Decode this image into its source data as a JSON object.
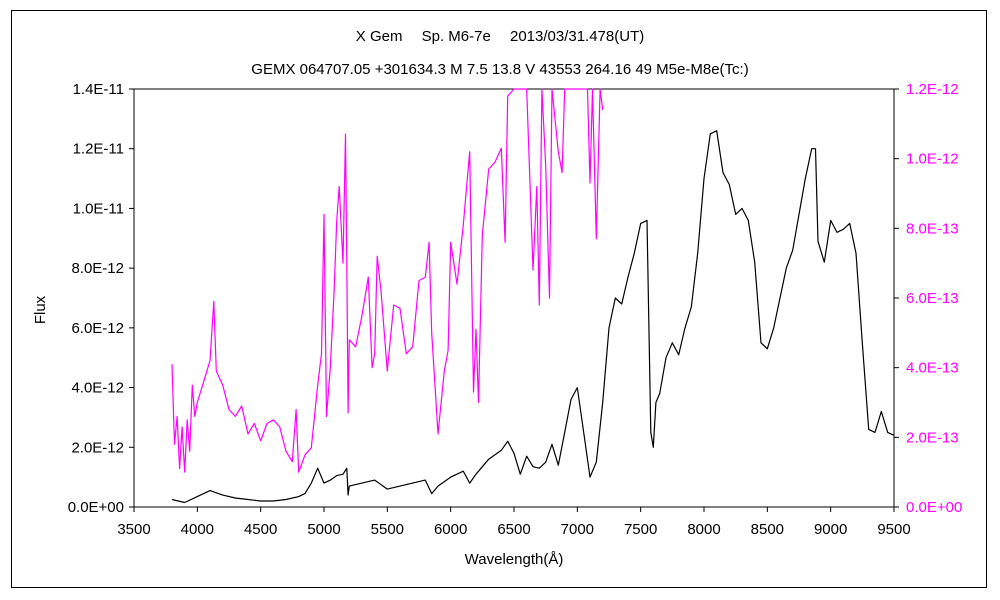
{
  "chart_data": {
    "type": "line",
    "title": "X Gem　 Sp. M6-7e　 2013/03/31.478(UT)",
    "subtitle": "GEMX 064707.05 +301634.3 M 7.5 13.8 V 43553 264.16 49 M5e-M8e(Tc:)",
    "xlabel": "Wavelength(Å)",
    "ylabel": "Flux",
    "xlim": [
      3500,
      9500
    ],
    "x_ticks": [
      "3500",
      "4000",
      "4500",
      "5000",
      "5500",
      "6000",
      "6500",
      "7000",
      "7500",
      "8000",
      "8500",
      "9000",
      "9500"
    ],
    "ylim_left": [
      0,
      1.4e-11
    ],
    "y_ticks_left": [
      "0.0E+00",
      "2.0E-12",
      "4.0E-12",
      "6.0E-12",
      "8.0E-12",
      "1.0E-11",
      "1.2E-11",
      "1.4E-11"
    ],
    "ylim_right": [
      0,
      1.2e-12
    ],
    "y_ticks_right": [
      "0.0E+00",
      "2.0E-13",
      "4.0E-13",
      "6.0E-13",
      "8.0E-13",
      "1.0E-12",
      "1.2E-12"
    ],
    "grid": false,
    "series": [
      {
        "axis": "left",
        "color": "#000000",
        "x": [
          3800,
          3900,
          4000,
          4100,
          4200,
          4300,
          4400,
          4500,
          4600,
          4700,
          4800,
          4850,
          4900,
          4950,
          5000,
          5050,
          5100,
          5150,
          5180,
          5190,
          5200,
          5300,
          5400,
          5500,
          5550,
          5600,
          5700,
          5800,
          5850,
          5900,
          6000,
          6100,
          6150,
          6200,
          6300,
          6400,
          6450,
          6500,
          6550,
          6600,
          6650,
          6700,
          6750,
          6800,
          6850,
          6900,
          6950,
          7000,
          7050,
          7100,
          7150,
          7200,
          7250,
          7300,
          7350,
          7400,
          7450,
          7500,
          7550,
          7580,
          7600,
          7620,
          7650,
          7700,
          7750,
          7800,
          7850,
          7900,
          7950,
          8000,
          8050,
          8100,
          8150,
          8200,
          8250,
          8300,
          8350,
          8400,
          8450,
          8500,
          8550,
          8600,
          8650,
          8700,
          8750,
          8800,
          8850,
          8880,
          8900,
          8950,
          9000,
          9050,
          9100,
          9150,
          9200,
          9250,
          9300,
          9350,
          9400,
          9450,
          9500
        ],
        "y": [
          2.5e-13,
          1.5e-13,
          3.5e-13,
          5.5e-13,
          4e-13,
          3e-13,
          2.5e-13,
          2e-13,
          2e-13,
          2.5e-13,
          3.5e-13,
          4.5e-13,
          8e-13,
          1.3e-12,
          8e-13,
          9e-13,
          1.05e-12,
          1.1e-12,
          1.3e-12,
          4e-13,
          7e-13,
          8e-13,
          9e-13,
          6e-13,
          6.5e-13,
          7e-13,
          8e-13,
          9e-13,
          4.5e-13,
          7e-13,
          1e-12,
          1.2e-12,
          8e-13,
          1.1e-12,
          1.6e-12,
          1.9e-12,
          2.2e-12,
          1.8e-12,
          1.1e-12,
          1.7e-12,
          1.35e-12,
          1.3e-12,
          1.5e-12,
          2.1e-12,
          1.4e-12,
          2.5e-12,
          3.6e-12,
          4e-12,
          2.5e-12,
          1e-12,
          1.5e-12,
          3.5e-12,
          6e-12,
          7e-12,
          6.8e-12,
          7.7e-12,
          8.5e-12,
          9.5e-12,
          9.6e-12,
          2.5e-12,
          2e-12,
          3.5e-12,
          3.8e-12,
          5e-12,
          5.5e-12,
          5.1e-12,
          6e-12,
          6.7e-12,
          8.5e-12,
          1.1e-11,
          1.25e-11,
          1.26e-11,
          1.12e-11,
          1.08e-11,
          9.8e-12,
          1e-11,
          9.6e-12,
          8.2e-12,
          5.5e-12,
          5.3e-12,
          6e-12,
          7e-12,
          8e-12,
          8.6e-12,
          9.8e-12,
          1.1e-11,
          1.2e-11,
          1.2e-11,
          8.9e-12,
          8.2e-12,
          9.6e-12,
          9.2e-12,
          9.3e-12,
          9.5e-12,
          8.5e-12,
          5.5e-12,
          2.6e-12,
          2.5e-12,
          3.2e-12,
          2.5e-12,
          2.4e-12
        ]
      },
      {
        "axis": "right",
        "color": "#ff00ff",
        "x": [
          3800,
          3820,
          3840,
          3860,
          3880,
          3900,
          3920,
          3940,
          3960,
          3980,
          4000,
          4050,
          4100,
          4130,
          4150,
          4200,
          4250,
          4300,
          4350,
          4400,
          4450,
          4500,
          4550,
          4600,
          4650,
          4700,
          4750,
          4780,
          4800,
          4850,
          4900,
          4950,
          4980,
          5000,
          5020,
          5050,
          5080,
          5100,
          5120,
          5150,
          5170,
          5180,
          5190,
          5200,
          5250,
          5300,
          5350,
          5380,
          5400,
          5420,
          5450,
          5500,
          5550,
          5600,
          5650,
          5700,
          5750,
          5800,
          5830,
          5850,
          5900,
          5950,
          5980,
          6000,
          6050,
          6100,
          6150,
          6180,
          6200,
          6220,
          6250,
          6300,
          6350,
          6400,
          6430,
          6450,
          6500,
          6530,
          6550,
          6600,
          6650,
          6680,
          6700,
          6720,
          6750,
          6780,
          6800,
          6850,
          6880,
          6900,
          6920,
          6950,
          7000,
          7050,
          7080,
          7100,
          7120,
          7150,
          7180,
          7200
        ],
        "y": [
          4.1e-13,
          1.8e-13,
          2.6e-13,
          1.1e-13,
          2.3e-13,
          1e-13,
          2.5e-13,
          1.6e-13,
          3.5e-13,
          2.6e-13,
          3e-13,
          3.6e-13,
          4.2e-13,
          5.9e-13,
          3.9e-13,
          3.5e-13,
          2.8e-13,
          2.6e-13,
          2.9e-13,
          2.1e-13,
          2.4e-13,
          1.9e-13,
          2.4e-13,
          2.5e-13,
          2.3e-13,
          1.6e-13,
          1.3e-13,
          2.8e-13,
          1e-13,
          1.5e-13,
          1.7e-13,
          3.5e-13,
          4.4e-13,
          8.4e-13,
          2.6e-13,
          4e-13,
          6.2e-13,
          8.2e-13,
          9.2e-13,
          7e-13,
          1.07e-12,
          7e-13,
          2.7e-13,
          4.8e-13,
          4.6e-13,
          5.5e-13,
          6.6e-13,
          4e-13,
          4.4e-13,
          7.2e-13,
          6.2e-13,
          3.9e-13,
          5.8e-13,
          5.7e-13,
          4.4e-13,
          4.6e-13,
          6.5e-13,
          6.6e-13,
          7.6e-13,
          5e-13,
          2.1e-13,
          3.9e-13,
          4.5e-13,
          7.6e-13,
          6.4e-13,
          8.1e-13,
          1.02e-12,
          3.3e-13,
          5.1e-13,
          3e-13,
          7.8e-13,
          9.7e-13,
          9.9e-13,
          1.03e-12,
          7.6e-13,
          1.18e-12,
          1.25e-12,
          1.25e-12,
          1.25e-12,
          1.25e-12,
          6.8e-13,
          9.2e-13,
          5.8e-13,
          1.25e-12,
          9.8e-13,
          6e-13,
          1.25e-12,
          1.02e-12,
          9.6e-13,
          1.25e-12,
          1.25e-12,
          1.25e-12,
          1.25e-12,
          1.25e-12,
          1.25e-12,
          9.3e-13,
          1.25e-12,
          7.7e-13,
          1.25e-12,
          1.14e-12
        ]
      }
    ]
  }
}
